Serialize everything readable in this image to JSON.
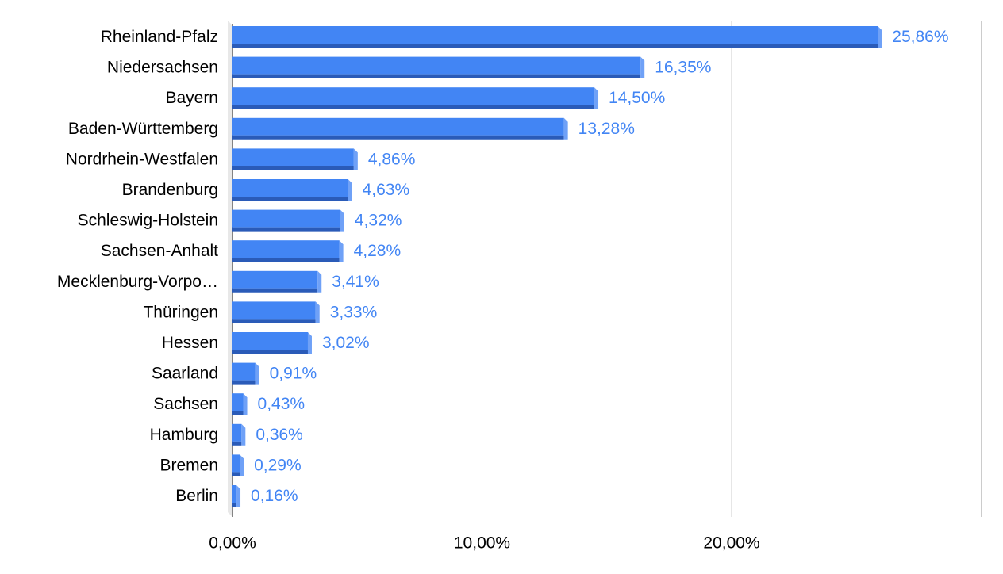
{
  "chart_data": {
    "type": "bar",
    "orientation": "horizontal",
    "categories": [
      "Rheinland-Pfalz",
      "Niedersachsen",
      "Bayern",
      "Baden-Württemberg",
      "Nordrhein-Westfalen",
      "Brandenburg",
      "Schleswig-Holstein",
      "Sachsen-Anhalt",
      "Mecklenburg-Vorpo…",
      "Thüringen",
      "Hessen",
      "Saarland",
      "Sachsen",
      "Hamburg",
      "Bremen",
      "Berlin"
    ],
    "values": [
      25.86,
      16.35,
      14.5,
      13.28,
      4.86,
      4.63,
      4.32,
      4.28,
      3.41,
      3.33,
      3.02,
      0.91,
      0.43,
      0.36,
      0.29,
      0.16
    ],
    "value_labels": [
      "25,86%",
      "16,35%",
      "14,50%",
      "13,28%",
      "4,86%",
      "4,63%",
      "4,32%",
      "4,28%",
      "3,41%",
      "3,33%",
      "3,02%",
      "0,91%",
      "0,43%",
      "0,36%",
      "0,29%",
      "0,16%"
    ],
    "x_ticks": [
      0,
      10,
      20
    ],
    "x_tick_labels": [
      "0,00%",
      "10,00%",
      "20,00%"
    ],
    "xlim": [
      0,
      30
    ],
    "grid": true,
    "legend": "none",
    "title": "",
    "xlabel": "",
    "ylabel": "",
    "colors": {
      "bar_front": "#4285f4",
      "bar_side": "#6fa1f7",
      "bar_shadow": "#2a5bb8",
      "value_label": "#4285f4",
      "grid": "#cccccc",
      "axis_wall": "#e8e8e8"
    }
  }
}
